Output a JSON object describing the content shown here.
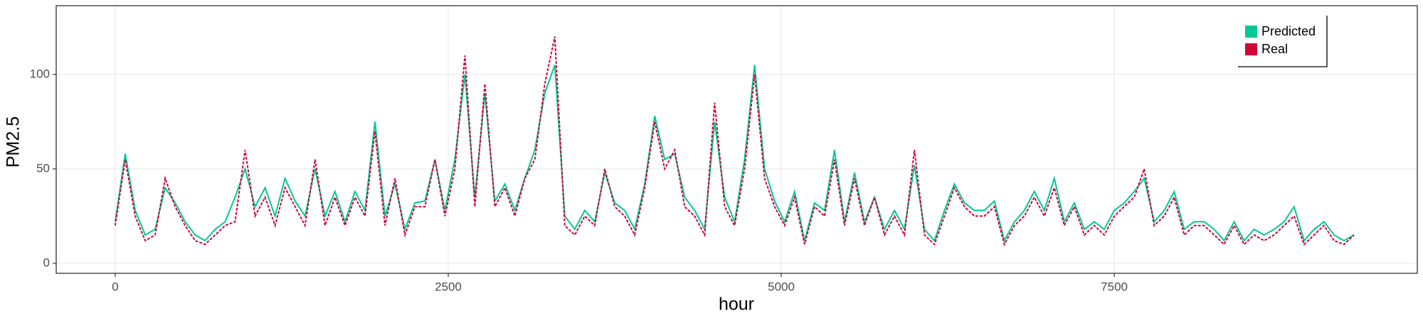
{
  "chart_data": {
    "type": "line",
    "x_label": "hour",
    "y_label": "PM2.5",
    "xlim": [
      -443,
      9775
    ],
    "ylim": [
      -5.3,
      136.4
    ],
    "xticks": [
      0,
      2500,
      5000,
      7500
    ],
    "yticks": [
      0,
      50,
      100
    ],
    "grid": true,
    "legend_position": "top-right",
    "x": [
      0,
      75,
      150,
      225,
      300,
      375,
      450,
      525,
      600,
      675,
      750,
      825,
      900,
      975,
      1050,
      1125,
      1200,
      1275,
      1350,
      1425,
      1500,
      1575,
      1650,
      1725,
      1800,
      1875,
      1950,
      2025,
      2100,
      2175,
      2250,
      2325,
      2400,
      2475,
      2550,
      2625,
      2700,
      2775,
      2850,
      2925,
      3000,
      3075,
      3150,
      3225,
      3300,
      3375,
      3450,
      3525,
      3600,
      3675,
      3750,
      3825,
      3900,
      3975,
      4050,
      4125,
      4200,
      4275,
      4350,
      4425,
      4500,
      4575,
      4650,
      4725,
      4800,
      4875,
      4950,
      5025,
      5100,
      5175,
      5250,
      5325,
      5400,
      5475,
      5550,
      5625,
      5700,
      5775,
      5850,
      5925,
      6000,
      6075,
      6150,
      6225,
      6300,
      6375,
      6450,
      6525,
      6600,
      6675,
      6750,
      6825,
      6900,
      6975,
      7050,
      7125,
      7200,
      7275,
      7350,
      7425,
      7500,
      7575,
      7650,
      7725,
      7800,
      7875,
      7950,
      8025,
      8100,
      8175,
      8250,
      8325,
      8400,
      8475,
      8550,
      8625,
      8700,
      8775,
      8850,
      8925,
      9000,
      9075,
      9150,
      9225,
      9300
    ],
    "series": [
      {
        "name": "Predicted",
        "color": "#00c896",
        "dash": false,
        "values": [
          22,
          58,
          28,
          15,
          18,
          40,
          32,
          22,
          15,
          12,
          18,
          22,
          35,
          50,
          30,
          40,
          25,
          45,
          33,
          25,
          50,
          25,
          38,
          22,
          38,
          28,
          75,
          25,
          42,
          18,
          32,
          33,
          55,
          28,
          55,
          100,
          35,
          90,
          33,
          42,
          28,
          45,
          60,
          90,
          105,
          25,
          18,
          28,
          22,
          48,
          32,
          28,
          18,
          42,
          78,
          55,
          58,
          35,
          28,
          18,
          75,
          35,
          22,
          55,
          105,
          50,
          33,
          22,
          38,
          12,
          32,
          28,
          60,
          22,
          48,
          22,
          35,
          18,
          28,
          18,
          52,
          18,
          12,
          28,
          42,
          32,
          28,
          28,
          33,
          12,
          22,
          28,
          38,
          28,
          45,
          22,
          32,
          18,
          22,
          18,
          28,
          32,
          38,
          45,
          22,
          28,
          38,
          18,
          22,
          22,
          18,
          12,
          22,
          12,
          18,
          15,
          18,
          22,
          30,
          12,
          18,
          22,
          15,
          12,
          15
        ]
      },
      {
        "name": "Real",
        "color": "#d0063a",
        "dash": true,
        "values": [
          20,
          55,
          25,
          12,
          15,
          45,
          30,
          20,
          12,
          10,
          15,
          20,
          22,
          60,
          25,
          35,
          20,
          40,
          30,
          20,
          55,
          20,
          35,
          20,
          35,
          25,
          70,
          20,
          45,
          15,
          30,
          30,
          55,
          25,
          50,
          110,
          30,
          95,
          30,
          40,
          25,
          45,
          55,
          95,
          120,
          20,
          15,
          25,
          20,
          50,
          30,
          25,
          15,
          40,
          75,
          50,
          60,
          30,
          25,
          15,
          85,
          30,
          20,
          50,
          100,
          45,
          30,
          20,
          35,
          10,
          30,
          25,
          55,
          20,
          45,
          20,
          35,
          15,
          25,
          15,
          60,
          15,
          10,
          25,
          40,
          30,
          25,
          25,
          30,
          10,
          20,
          25,
          35,
          25,
          40,
          20,
          30,
          15,
          20,
          15,
          25,
          30,
          35,
          50,
          20,
          25,
          35,
          15,
          20,
          20,
          15,
          10,
          20,
          10,
          15,
          12,
          15,
          20,
          25,
          10,
          15,
          20,
          12,
          10,
          15
        ]
      }
    ]
  }
}
